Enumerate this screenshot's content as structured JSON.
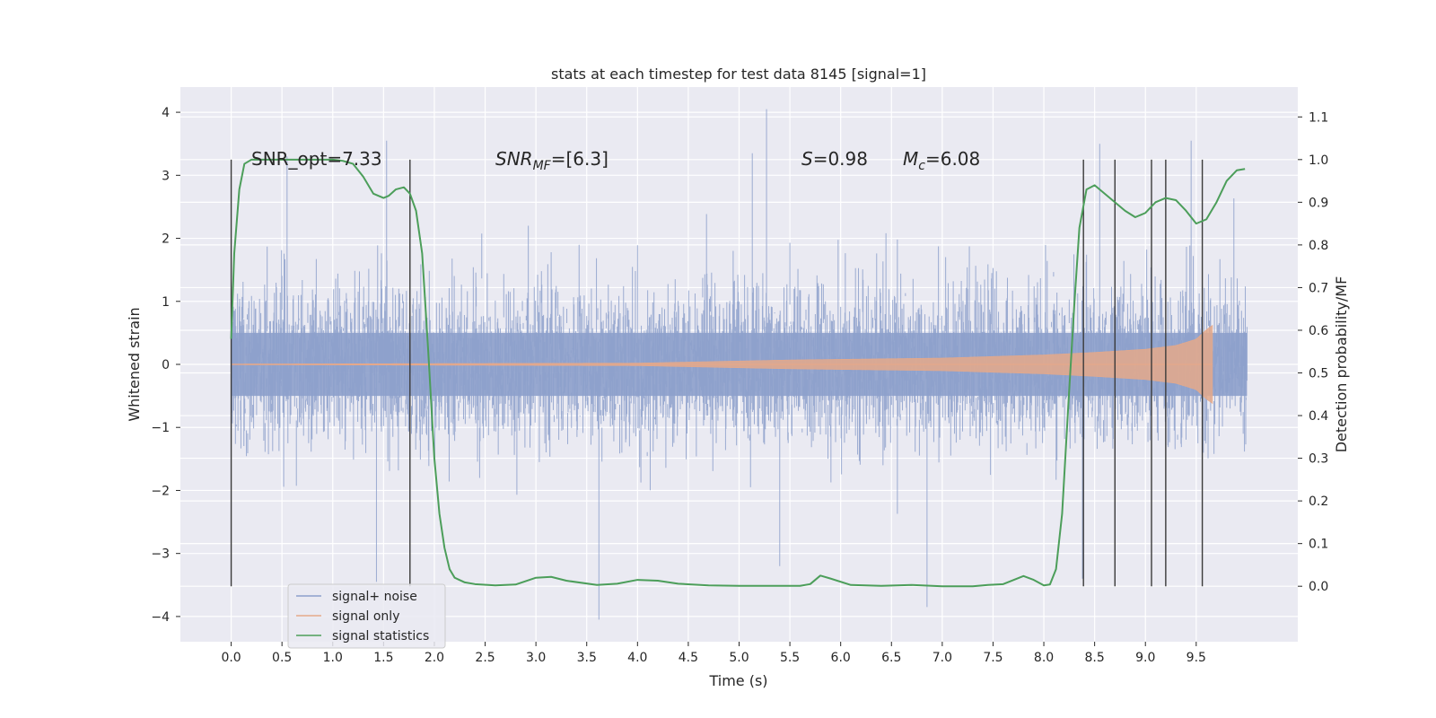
{
  "chart_data": {
    "type": "line",
    "title": "stats at each timestep for test data 8145 [signal=1]",
    "xlabel": "Time (s)",
    "ylabel": "Whitened strain",
    "y2label": "Detection probability/MF",
    "xlim": [
      -0.5,
      10.5
    ],
    "ylim": [
      -4.4,
      4.4
    ],
    "y2lim": [
      -0.13,
      1.17
    ],
    "x_ticks": [
      0.0,
      0.5,
      1.0,
      1.5,
      2.0,
      2.5,
      3.0,
      3.5,
      4.0,
      4.5,
      5.0,
      5.5,
      6.0,
      6.5,
      7.0,
      7.5,
      8.0,
      8.5,
      9.0,
      9.5
    ],
    "x_tick_labels": [
      "0.0",
      "0.5",
      "1.0",
      "1.5",
      "2.0",
      "2.5",
      "3.0",
      "3.5",
      "4.0",
      "4.5",
      "5.0",
      "5.5",
      "6.0",
      "6.5",
      "7.0",
      "7.5",
      "8.0",
      "8.5",
      "9.0",
      "9.5"
    ],
    "y_ticks": [
      -4,
      -3,
      -2,
      -1,
      0,
      1,
      2,
      3,
      4
    ],
    "y_tick_labels": [
      "−4",
      "−3",
      "−2",
      "−1",
      "0",
      "1",
      "2",
      "3",
      "4"
    ],
    "y2_ticks": [
      0.0,
      0.1,
      0.2,
      0.3,
      0.4,
      0.5,
      0.6,
      0.7,
      0.8,
      0.9,
      1.0,
      1.1
    ],
    "y2_tick_labels": [
      "0.0",
      "0.1",
      "0.2",
      "0.3",
      "0.4",
      "0.5",
      "0.6",
      "0.7",
      "0.8",
      "0.9",
      "1.0",
      "1.1"
    ],
    "grid": true,
    "legend_position": "bottom-left",
    "annotations": {
      "snr_opt": "SNR_opt=7.33",
      "snr_mf_prefix": "SNR",
      "snr_mf_sub": "MF",
      "snr_mf_value": "=[6.3]",
      "s_prefix": "S",
      "s_value": "=0.98",
      "mc_prefix": "M",
      "mc_sub": "c",
      "mc_value": "=6.08"
    },
    "series": [
      {
        "name": "signal+ noise",
        "color": "#8da0cb",
        "kind": "noise",
        "x_range": [
          0.0,
          10.0
        ],
        "std": 0.63,
        "spikes": [
          [
            0.55,
            3.3
          ],
          [
            1.53,
            3.55
          ],
          [
            5.27,
            4.05
          ],
          [
            5.13,
            3.35
          ],
          [
            3.62,
            -4.05
          ],
          [
            6.85,
            -3.85
          ],
          [
            1.43,
            -3.45
          ],
          [
            8.38,
            -3.4
          ],
          [
            5.4,
            -3.2
          ],
          [
            9.45,
            3.55
          ],
          [
            8.55,
            3.5
          ]
        ]
      },
      {
        "name": "signal only",
        "color": "#e5a98a",
        "kind": "chirp",
        "x_range": [
          0.0,
          9.66
        ],
        "amplitude_points": [
          [
            0.0,
            0.005
          ],
          [
            4.0,
            0.02
          ],
          [
            5.5,
            0.07
          ],
          [
            7.0,
            0.1
          ],
          [
            8.0,
            0.15
          ],
          [
            8.5,
            0.19
          ],
          [
            9.0,
            0.24
          ],
          [
            9.3,
            0.3
          ],
          [
            9.5,
            0.4
          ],
          [
            9.6,
            0.55
          ],
          [
            9.66,
            0.62
          ],
          [
            9.67,
            0.0
          ]
        ]
      },
      {
        "name": "signal statistics",
        "color": "#4c9e5a",
        "axis": "right",
        "x": [
          0.0,
          0.03,
          0.08,
          0.13,
          0.2,
          0.3,
          0.5,
          0.8,
          1.0,
          1.1,
          1.2,
          1.3,
          1.4,
          1.5,
          1.55,
          1.62,
          1.7,
          1.76,
          1.82,
          1.88,
          1.94,
          2.0,
          2.05,
          2.1,
          2.15,
          2.2,
          2.3,
          2.4,
          2.6,
          2.8,
          3.0,
          3.15,
          3.3,
          3.6,
          3.8,
          4.0,
          4.2,
          4.4,
          4.7,
          5.0,
          5.3,
          5.6,
          5.7,
          5.8,
          5.9,
          6.1,
          6.4,
          6.7,
          7.0,
          7.3,
          7.45,
          7.6,
          7.8,
          7.9,
          8.0,
          8.06,
          8.12,
          8.18,
          8.24,
          8.3,
          8.35,
          8.42,
          8.5,
          8.6,
          8.7,
          8.8,
          8.9,
          9.0,
          9.1,
          9.2,
          9.3,
          9.4,
          9.5,
          9.6,
          9.7,
          9.8,
          9.9,
          9.98
        ],
        "y": [
          0.58,
          0.78,
          0.93,
          0.99,
          1.0,
          1.0,
          1.0,
          1.0,
          1.0,
          0.997,
          0.99,
          0.96,
          0.92,
          0.91,
          0.915,
          0.93,
          0.935,
          0.92,
          0.88,
          0.78,
          0.55,
          0.3,
          0.17,
          0.09,
          0.04,
          0.02,
          0.009,
          0.005,
          0.002,
          0.004,
          0.02,
          0.022,
          0.013,
          0.003,
          0.006,
          0.015,
          0.013,
          0.006,
          0.002,
          0.001,
          0.001,
          0.001,
          0.005,
          0.025,
          0.018,
          0.003,
          0.001,
          0.003,
          0.0,
          0.0,
          0.003,
          0.005,
          0.024,
          0.015,
          0.002,
          0.004,
          0.04,
          0.17,
          0.42,
          0.66,
          0.84,
          0.93,
          0.94,
          0.92,
          0.9,
          0.88,
          0.865,
          0.875,
          0.9,
          0.91,
          0.905,
          0.88,
          0.85,
          0.86,
          0.9,
          0.95,
          0.975,
          0.978
        ]
      }
    ],
    "vertical_markers_x": [
      0.0,
      1.76,
      8.39,
      8.7,
      9.06,
      9.2,
      9.56
    ]
  }
}
